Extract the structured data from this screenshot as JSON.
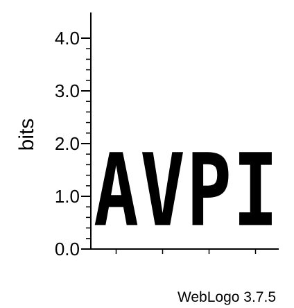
{
  "chart_data": {
    "type": "sequence-logo",
    "ylabel": "bits",
    "ylim": [
      0,
      4.32
    ],
    "yticks": [
      "0.0",
      "1.0",
      "2.0",
      "3.0",
      "4.0"
    ],
    "ytick_values": [
      0,
      1,
      2,
      3,
      4
    ],
    "minor_tick_step": 0.2,
    "positions": [
      {
        "letter": "A",
        "bits": 2.22
      },
      {
        "letter": "V",
        "bits": 2.22
      },
      {
        "letter": "P",
        "bits": 2.22
      },
      {
        "letter": "I",
        "bits": 2.22
      }
    ],
    "grid": false,
    "color": "#000000"
  },
  "footer": {
    "label": "WebLogo 3.7.5"
  }
}
